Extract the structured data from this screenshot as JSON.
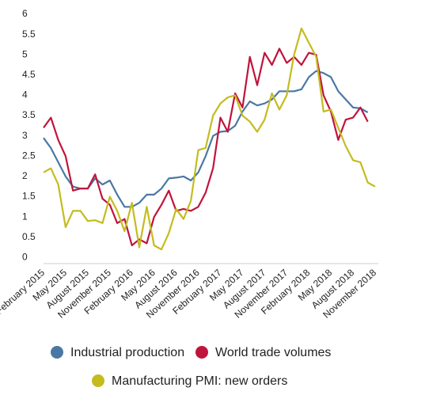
{
  "chart_data": {
    "type": "line",
    "categories": [
      "February 2015",
      null,
      null,
      "May 2015",
      null,
      null,
      "August 2015",
      null,
      null,
      "November 2015",
      null,
      null,
      "February 2016",
      null,
      null,
      "May 2016",
      null,
      null,
      "August 2016",
      null,
      null,
      "November 2016",
      null,
      null,
      "February 2017",
      null,
      null,
      "May 2017",
      null,
      null,
      "August 2017",
      null,
      null,
      "November 2017",
      null,
      null,
      "February 2018",
      null,
      null,
      "May 2018",
      null,
      null,
      "August 2018",
      null,
      null,
      "November 2018"
    ],
    "series": [
      {
        "name": "Industrial production",
        "color": "#4a78a5",
        "values": [
          2.95,
          2.7,
          2.35,
          2.0,
          1.75,
          1.7,
          1.7,
          1.95,
          1.8,
          1.9,
          1.55,
          1.25,
          1.25,
          1.35,
          1.55,
          1.55,
          1.7,
          1.95,
          1.97,
          2.0,
          1.9,
          2.1,
          2.5,
          3.0,
          3.1,
          3.12,
          3.25,
          3.6,
          3.85,
          3.75,
          3.8,
          3.9,
          4.1,
          4.1,
          4.1,
          4.15,
          4.45,
          4.6,
          4.55,
          4.45,
          4.1,
          3.9,
          3.7,
          3.68,
          3.58,
          null
        ]
      },
      {
        "name": "World trade volumes",
        "color": "#c0143c",
        "values": [
          3.2,
          3.45,
          2.9,
          2.5,
          1.65,
          1.7,
          1.7,
          2.05,
          1.45,
          1.3,
          0.85,
          0.95,
          0.3,
          0.45,
          0.35,
          1.0,
          1.3,
          1.65,
          1.15,
          1.2,
          1.15,
          1.25,
          1.6,
          2.2,
          3.45,
          3.1,
          4.05,
          3.7,
          4.95,
          4.25,
          5.05,
          4.75,
          5.15,
          4.8,
          4.95,
          4.75,
          5.05,
          5.0,
          4.0,
          3.6,
          2.9,
          3.4,
          3.45,
          3.7,
          3.35,
          null
        ]
      },
      {
        "name": "Manufacturing PMI: new orders",
        "color": "#c4bc1e",
        "values": [
          2.1,
          2.2,
          1.8,
          0.75,
          1.15,
          1.15,
          0.9,
          0.92,
          0.85,
          1.5,
          1.15,
          0.65,
          1.35,
          0.25,
          1.25,
          0.3,
          0.2,
          0.6,
          1.2,
          0.95,
          1.4,
          2.65,
          2.7,
          3.5,
          3.8,
          3.95,
          4.0,
          3.5,
          3.35,
          3.1,
          3.4,
          4.05,
          3.65,
          4.0,
          5.0,
          5.65,
          5.3,
          4.95,
          3.6,
          3.65,
          3.2,
          2.75,
          2.4,
          2.35,
          1.85,
          1.75
        ]
      }
    ],
    "ylim": [
      -0.15,
      6
    ],
    "yticks": [
      0,
      0.5,
      1,
      1.5,
      2,
      2.5,
      3,
      3.5,
      4,
      4.5,
      5,
      5.5,
      6
    ],
    "grid": false
  }
}
